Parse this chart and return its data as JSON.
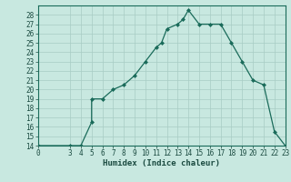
{
  "xlabel": "Humidex (Indice chaleur)",
  "x_data": [
    0,
    3,
    4,
    5,
    5,
    6,
    7,
    8,
    9,
    10,
    11,
    11.5,
    12,
    13,
    13.5,
    14,
    15,
    16,
    17,
    18,
    19,
    20,
    21,
    22,
    23
  ],
  "y_data": [
    14,
    14,
    14,
    16.5,
    19,
    19,
    20,
    20.5,
    21.5,
    23,
    24.5,
    25,
    26.5,
    27,
    27.5,
    28.5,
    27,
    27,
    27,
    25,
    23,
    21,
    20.5,
    15.5,
    14
  ],
  "y_baseline": 14,
  "xlim": [
    0,
    23
  ],
  "ylim": [
    14,
    29
  ],
  "yticks": [
    14,
    15,
    16,
    17,
    18,
    19,
    20,
    21,
    22,
    23,
    24,
    25,
    26,
    27,
    28
  ],
  "xticks": [
    0,
    3,
    4,
    5,
    6,
    7,
    8,
    9,
    10,
    11,
    12,
    13,
    14,
    15,
    16,
    17,
    18,
    19,
    20,
    21,
    22,
    23
  ],
  "line_color": "#1a6b5a",
  "marker_color": "#1a6b5a",
  "bg_color": "#c8e8e0",
  "grid_color": "#a8ccc4",
  "axis_color": "#1a6b5a",
  "text_color": "#1a4a40",
  "label_fontsize": 5.5,
  "xlabel_fontsize": 6.5
}
